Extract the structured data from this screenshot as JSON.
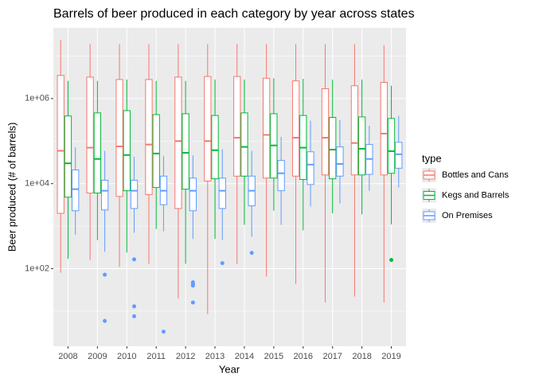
{
  "chart_data": {
    "type": "boxplot",
    "title": "Barrels of beer produced in each category by year across states",
    "x_label": "Year",
    "y_label": "Beer produced (# of barrels)",
    "legend_title": "type",
    "legend_position": "right",
    "log_scale": true,
    "grid": true,
    "categories": [
      "2008",
      "2009",
      "2010",
      "2011",
      "2012",
      "2013",
      "2014",
      "2015",
      "2016",
      "2017",
      "2018",
      "2019"
    ],
    "ylim": [
      1.5,
      46000000
    ],
    "yticks": [
      {
        "value": 100,
        "label": "1e+02"
      },
      {
        "value": 10000,
        "label": "1e+04"
      },
      {
        "value": 1000000,
        "label": "1e+06"
      }
    ],
    "series": [
      {
        "name": "Bottles and Cans",
        "color": "#F8766D",
        "low": [
          80,
          160,
          110,
          130,
          20,
          8.5,
          130,
          65,
          44,
          16,
          22,
          16
        ],
        "q1": [
          2000,
          6000,
          5000,
          5500,
          2600,
          11500,
          15000,
          13500,
          15000,
          16000,
          16000,
          16000
        ],
        "median": [
          59000,
          70000,
          75000,
          83000,
          100000,
          100000,
          120000,
          140000,
          120000,
          120000,
          90000,
          150000
        ],
        "q3": [
          3500000,
          3200000,
          2800000,
          2800000,
          3200000,
          3300000,
          3300000,
          3000000,
          2600000,
          1700000,
          2000000,
          2400000
        ],
        "high": [
          24000000,
          19000000,
          19000000,
          19000000,
          19000000,
          19000000,
          19000000,
          19000000,
          19000000,
          19000000,
          19000000,
          18000000
        ],
        "outliers": [
          [],
          [],
          [],
          [],
          [],
          [],
          [],
          [],
          [],
          [],
          [],
          []
        ]
      },
      {
        "name": "Kegs and Barrels",
        "color": "#00BA38",
        "low": [
          170,
          470,
          240,
          850,
          130,
          500,
          1070,
          2300,
          800,
          2000,
          1900,
          1100
        ],
        "q1": [
          4800,
          6000,
          6800,
          8100,
          7400,
          13000,
          15000,
          13500,
          12500,
          13000,
          16000,
          17500
        ],
        "median": [
          30000,
          38000,
          47000,
          51000,
          53000,
          61000,
          73000,
          79000,
          70000,
          63000,
          66000,
          58000
        ],
        "q3": [
          390000,
          460000,
          520000,
          420000,
          440000,
          400000,
          460000,
          440000,
          400000,
          360000,
          370000,
          340000
        ],
        "high": [
          2600000,
          2600000,
          2800000,
          2600000,
          2600000,
          2800000,
          2800000,
          3000000,
          2900000,
          2800000,
          2800000,
          2000000
        ],
        "outliers": [
          [],
          [],
          [],
          [],
          [],
          [],
          [],
          [],
          [],
          [],
          [],
          [
            160
          ]
        ]
      },
      {
        "name": "On Premises",
        "color": "#619CFF",
        "low": [
          630,
          250,
          700,
          760,
          500,
          470,
          560,
          1070,
          2900,
          3400,
          6800,
          8100
        ],
        "q1": [
          2300,
          2400,
          2600,
          3200,
          2300,
          2600,
          3000,
          6800,
          9500,
          15000,
          16500,
          23000
        ],
        "median": [
          7400,
          6800,
          6800,
          6800,
          6800,
          6800,
          6800,
          17500,
          28000,
          29000,
          38000,
          49000
        ],
        "q3": [
          21000,
          12000,
          12000,
          15000,
          13500,
          13500,
          15000,
          35000,
          56000,
          73000,
          83000,
          94000
        ],
        "high": [
          72000,
          59000,
          43000,
          45000,
          46000,
          64000,
          59000,
          126000,
          300000,
          310000,
          230000,
          390000
        ],
        "outliers": [
          [],
          [
            72,
            5.9
          ],
          [
            165,
            13,
            7.6
          ],
          [
            3.3
          ],
          [
            48,
            44,
            40,
            16
          ],
          [
            135
          ],
          [
            235
          ],
          [],
          [],
          [],
          [],
          []
        ]
      }
    ]
  }
}
